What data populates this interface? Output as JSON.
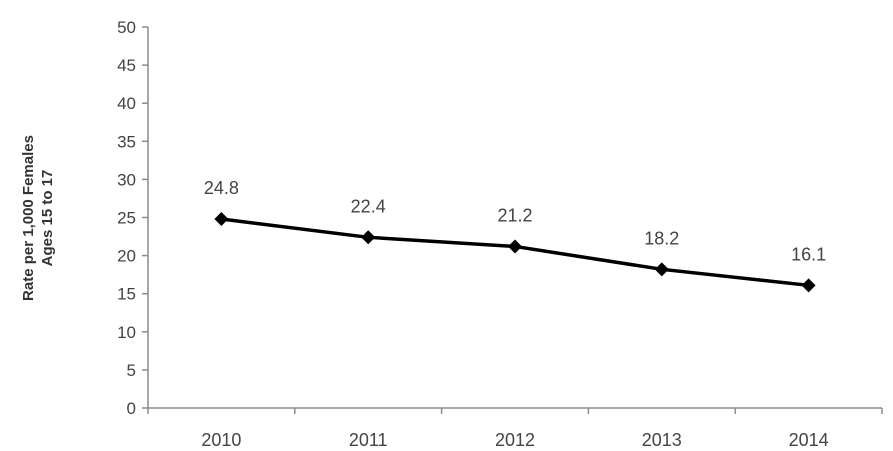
{
  "chart_data": {
    "type": "line",
    "title": "",
    "xlabel": "",
    "ylabel_line1": "Rate per 1,000 Females",
    "ylabel_line2": "Ages 15 to 17",
    "categories": [
      "2010",
      "2011",
      "2012",
      "2013",
      "2014"
    ],
    "series": [
      {
        "values": [
          24.8,
          22.4,
          21.2,
          18.2,
          16.1
        ],
        "color": "#000000"
      }
    ],
    "data_labels": [
      "24.8",
      "22.4",
      "21.2",
      "18.2",
      "16.1"
    ],
    "ylim": [
      0,
      50
    ],
    "yticks": [
      0,
      5,
      10,
      15,
      20,
      25,
      30,
      35,
      40,
      45,
      50
    ],
    "ytick_labels": [
      "0",
      "5",
      "10",
      "15",
      "20",
      "25",
      "30",
      "35",
      "40",
      "45",
      "50"
    ],
    "grid": false,
    "legend": "none",
    "marker": "diamond"
  }
}
